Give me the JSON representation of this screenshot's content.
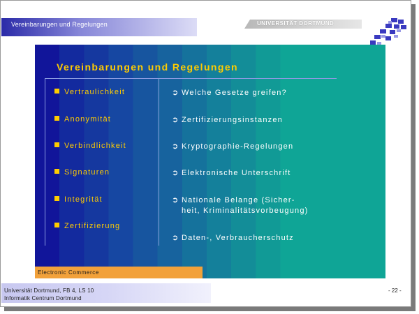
{
  "header": {
    "slide_title": "Vereinbarungen und Regelungen",
    "university": "UNIVERSITÄT DORTMUND"
  },
  "content": {
    "title": "Vereinbarungen und Regelungen",
    "left_items": [
      {
        "label": "Vertraulichkeit"
      },
      {
        "label": "Anonymität"
      },
      {
        "label": "Verbindlichkeit"
      },
      {
        "label": "Signaturen"
      },
      {
        "label": "Integrität"
      },
      {
        "label": "Zertifizierung"
      }
    ],
    "right_items": [
      {
        "line1": "Welche Gesetze greifen?"
      },
      {
        "line1": "Zertifizierungsinstanzen"
      },
      {
        "line1": "Kryptographie-Regelungen"
      },
      {
        "line1": "Elektronische Unterschrift"
      },
      {
        "line1": "Nationale Belange (Sicher-",
        "line2": "heit, Kriminalitätsvorbeugung)"
      },
      {
        "line1": "Daten-, Verbraucherschutz"
      }
    ],
    "arrow_glyph": "⮑"
  },
  "footer": {
    "label": "Electronic Commerce",
    "line1": "Universität Dortmund, FB 4, LS 10",
    "line2": "Informatik Centrum Dortmund",
    "page": "- 22 -"
  },
  "colors": {
    "accent": "#ffcc00",
    "content_dark": "#11159a",
    "content_light": "#0fa596",
    "footer_bar": "#f2a13a"
  }
}
